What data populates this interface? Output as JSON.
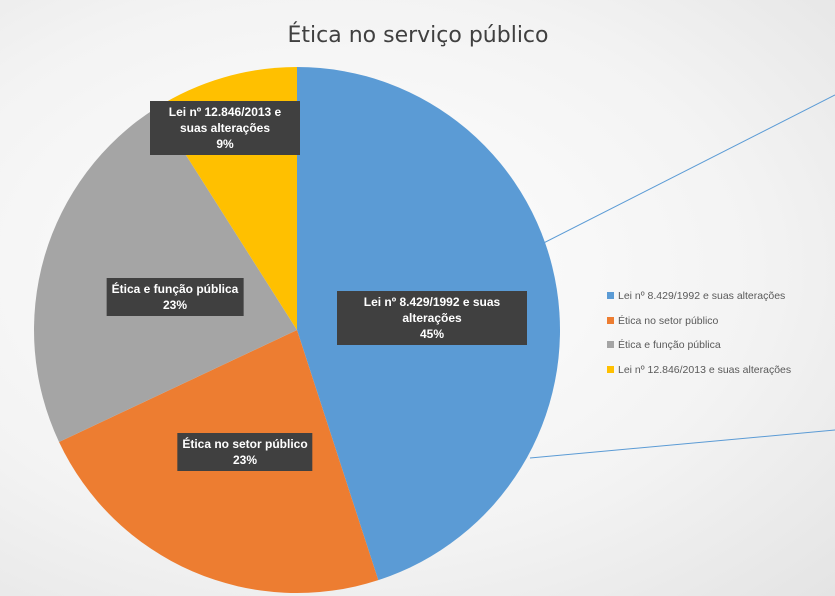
{
  "chart_data": {
    "type": "pie",
    "title": "Ética no serviço público",
    "categories": [
      "Lei nº 8.429/1992 e suas alterações",
      "Ética no setor público",
      "Ética e função pública",
      "Lei nº 12.846/2013 e suas alterações"
    ],
    "values": [
      45,
      23,
      23,
      9
    ],
    "value_labels": [
      "45%",
      "23%",
      "23%",
      "9%"
    ],
    "colors": [
      "#5b9bd5",
      "#ed7d31",
      "#a5a5a5",
      "#ffc000"
    ],
    "legend": "right"
  }
}
